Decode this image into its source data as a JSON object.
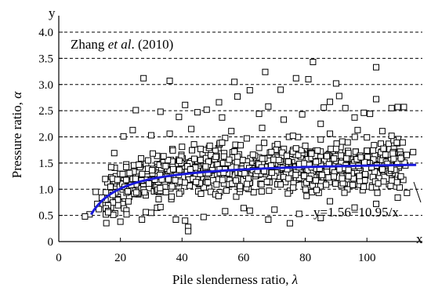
{
  "chart_data": {
    "type": "scatter",
    "title": "",
    "source_label": {
      "prefix": "Zhang ",
      "italic": "et al",
      "suffix": ". (2010)"
    },
    "xlabel": {
      "text": "Pile slenderness ratio, ",
      "symbol": "λ"
    },
    "ylabel": {
      "text": "Pressure ratio, ",
      "symbol": "α"
    },
    "x_axis_name": "x",
    "y_axis_name": "y",
    "xlim": [
      0,
      118
    ],
    "ylim": [
      0,
      4.0
    ],
    "x_ticks": [
      0,
      20,
      40,
      60,
      80,
      100
    ],
    "x_tick_labels": [
      "0",
      "20",
      "40",
      "60",
      "80",
      "100"
    ],
    "y_ticks": [
      0,
      0.5,
      1.0,
      1.5,
      2.0,
      2.5,
      3.0,
      3.5,
      4.0
    ],
    "y_tick_labels": [
      "0",
      "0.5",
      "1.0",
      "1.5",
      "2.0",
      "2.5",
      "3.0",
      "3.5",
      "4.0"
    ],
    "grid": {
      "horizontal_dashed": true,
      "vertical": false
    },
    "fit": {
      "label": "y=1.56−10.95/x",
      "a": 1.56,
      "b": -10.95,
      "x_range": [
        10.5,
        116
      ],
      "color": "#1a1adb"
    },
    "marker": "open-square",
    "series": [
      {
        "points": [
          [
            27.5,
            3.12
          ],
          [
            82.5,
            3.43
          ],
          [
            103,
            3.33
          ],
          [
            67,
            3.24
          ],
          [
            57,
            3.05
          ],
          [
            90,
            3.02
          ],
          [
            77,
            3.12
          ],
          [
            81,
            3.1
          ],
          [
            36,
            3.07
          ],
          [
            62,
            2.89
          ],
          [
            72,
            2.9
          ],
          [
            58,
            2.77
          ],
          [
            91,
            2.78
          ],
          [
            103,
            2.72
          ],
          [
            108,
            2.55
          ],
          [
            110,
            2.57
          ],
          [
            112,
            2.57
          ],
          [
            25,
            2.51
          ],
          [
            33,
            2.48
          ],
          [
            41,
            2.61
          ],
          [
            45,
            2.47
          ],
          [
            88,
            2.67
          ],
          [
            99,
            2.46
          ],
          [
            52,
            2.66
          ],
          [
            68,
            2.58
          ],
          [
            85,
            2.25
          ],
          [
            48,
            2.52
          ],
          [
            96,
            2.37
          ],
          [
            79,
            2.43
          ],
          [
            65,
            2.44
          ],
          [
            93,
            2.55
          ],
          [
            53,
            2.37
          ],
          [
            73,
            2.33
          ],
          [
            39,
            2.38
          ],
          [
            86,
            2.56
          ],
          [
            101,
            2.44
          ],
          [
            18,
            1.69
          ],
          [
            24,
            2.13
          ],
          [
            30,
            2.03
          ],
          [
            43,
            2.15
          ],
          [
            56,
            2.11
          ],
          [
            66,
            2.17
          ],
          [
            76,
            2.02
          ],
          [
            88,
            2.06
          ],
          [
            97,
            2.13
          ],
          [
            105,
            2.11
          ],
          [
            108,
            2.02
          ],
          [
            21,
            2.01
          ],
          [
            36,
            2.06
          ],
          [
            54,
            1.98
          ],
          [
            61,
            1.97
          ],
          [
            85,
            1.95
          ],
          [
            92,
            1.91
          ],
          [
            100,
            1.99
          ],
          [
            12,
            0.95
          ],
          [
            12.5,
            0.72
          ],
          [
            14,
            0.84
          ],
          [
            10,
            0.52
          ],
          [
            8.5,
            0.48
          ],
          [
            13,
            0.62
          ],
          [
            16,
            0.56
          ],
          [
            20,
            0.38
          ],
          [
            22,
            0.52
          ],
          [
            30,
            0.55
          ],
          [
            38,
            0.42
          ],
          [
            41,
            0.4
          ],
          [
            42,
            0.28
          ],
          [
            42,
            0.2
          ],
          [
            54,
            0.58
          ],
          [
            68,
            0.42
          ],
          [
            70,
            0.61
          ],
          [
            78,
            0.53
          ],
          [
            88,
            0.77
          ],
          [
            85,
            0.45
          ],
          [
            96,
            0.65
          ],
          [
            103,
            0.72
          ],
          [
            110,
            0.84
          ],
          [
            113,
            0.93
          ],
          [
            75,
            0.35
          ],
          [
            47,
            0.47
          ],
          [
            33,
            0.66
          ],
          [
            60,
            0.64
          ],
          [
            62,
            0.59
          ],
          [
            27,
            0.42
          ],
          [
            17,
            1.42
          ],
          [
            19,
            1.18
          ],
          [
            23,
            1.31
          ],
          [
            26,
            1.47
          ],
          [
            29,
            1.55
          ],
          [
            34,
            1.63
          ],
          [
            37,
            1.74
          ],
          [
            40,
            1.81
          ],
          [
            44,
            1.58
          ],
          [
            46,
            1.77
          ],
          [
            49,
            1.83
          ],
          [
            51,
            1.62
          ],
          [
            53,
            1.89
          ],
          [
            57,
            1.72
          ],
          [
            59,
            1.84
          ],
          [
            63,
            1.66
          ],
          [
            65,
            1.79
          ],
          [
            69,
            1.71
          ],
          [
            71,
            1.86
          ],
          [
            74,
            1.64
          ],
          [
            77,
            1.78
          ],
          [
            80,
            1.83
          ],
          [
            82,
            1.68
          ],
          [
            84,
            1.74
          ],
          [
            87,
            1.63
          ],
          [
            90,
            1.77
          ],
          [
            94,
            1.69
          ],
          [
            98,
            1.61
          ],
          [
            102,
            1.74
          ],
          [
            106,
            1.66
          ],
          [
            111,
            1.59
          ],
          [
            115,
            1.71
          ]
        ]
      }
    ],
    "seed": {
      "count": 760,
      "x_range": [
        15,
        113
      ],
      "note": "dense cloud around the fitted curve"
    }
  }
}
